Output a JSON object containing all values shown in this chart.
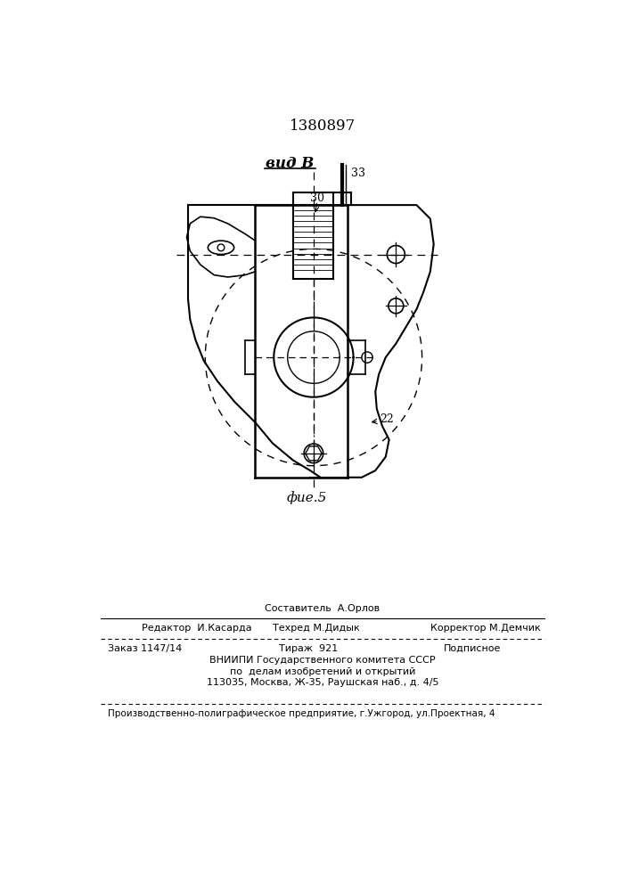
{
  "patent_number": "1380897",
  "view_label": "вид В",
  "fig_label": "фие.5",
  "label_30": "30",
  "label_33": "33",
  "label_22": "22",
  "bg_color": "#ffffff",
  "line_color": "#000000",
  "footer_line0_center": "Составитель  А.Орлов",
  "footer_line1_left": "Редактор  И.Касарда",
  "footer_line1_center": "Техред М.Дидык",
  "footer_line1_right": "Корректор М.Демчик",
  "footer_line2_left": "Заказ 1147/14",
  "footer_line2_center": "Тираж  921",
  "footer_line2_right": "Подписное",
  "footer_line3": "ВНИИПИ Государственного комитета СССР",
  "footer_line4": "по  делам изобретений и открытий",
  "footer_line5": "113035, Москва, Ж-35, Раушская наб., д. 4/5",
  "footer_line6": "Производственно-полиграфическое предприятие, г.Ужгород, ул.Проектная, 4"
}
